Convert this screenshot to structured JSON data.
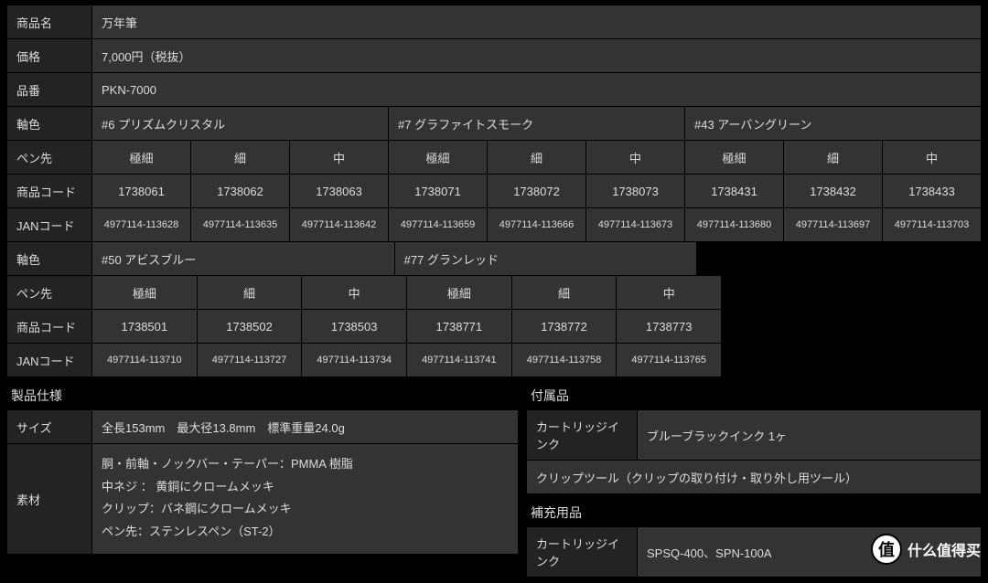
{
  "palette": {
    "bg": "#000000",
    "cell_header": "#232323",
    "cell_value": "#333333",
    "cell_mid": "#2b2b2b",
    "text": "#dddddd",
    "gap": "#000000"
  },
  "labels": {
    "product_name": "商品名",
    "price": "価格",
    "part_no": "品番",
    "body_color": "軸色",
    "nib": "ペン先",
    "product_code": "商品コード",
    "jan_code": "JANコード",
    "spec": "製品仕様",
    "size": "サイズ",
    "material": "素材",
    "accessories": "付属品",
    "cartridge_ink": "カートリッジインク",
    "clip_tool_label": "クリップツール（クリップの取り付け・取り外し用ツール）",
    "refill": "補充用品"
  },
  "product": {
    "name": "万年筆",
    "price": "7,000円（税抜）",
    "part_no": "PKN-7000"
  },
  "nib_types": [
    "極細",
    "細",
    "中"
  ],
  "colors1": [
    {
      "name": "#6 プリズムクリスタル",
      "codes": [
        "1738061",
        "1738062",
        "1738063"
      ],
      "jan": [
        "4977114-113628",
        "4977114-113635",
        "4977114-113642"
      ]
    },
    {
      "name": "#7 グラファイトスモーク",
      "codes": [
        "1738071",
        "1738072",
        "1738073"
      ],
      "jan": [
        "4977114-113659",
        "4977114-113666",
        "4977114-113673"
      ]
    },
    {
      "name": "#43 アーバングリーン",
      "codes": [
        "1738431",
        "1738432",
        "1738433"
      ],
      "jan": [
        "4977114-113680",
        "4977114-113697",
        "4977114-113703"
      ]
    }
  ],
  "colors2": [
    {
      "name": "#50 アビスブルー",
      "codes": [
        "1738501",
        "1738502",
        "1738503"
      ],
      "jan": [
        "4977114-113710",
        "4977114-113727",
        "4977114-113734"
      ]
    },
    {
      "name": "#77 グランレッド",
      "codes": [
        "1738771",
        "1738772",
        "1738773"
      ],
      "jan": [
        "4977114-113741",
        "4977114-113758",
        "4977114-113765"
      ]
    }
  ],
  "spec": {
    "size": "全長153mm　最大径13.8mm　標準重量24.0g",
    "material": [
      "胴・前軸・ノックバー・テーパー：PMMA 樹脂",
      "中ネジ ： 黄銅にクロームメッキ",
      "クリップ：バネ鋼にクロームメッキ",
      "ペン先：ステンレスペン（ST-2）"
    ]
  },
  "accessories": {
    "cartridge": "ブルーブラックインク 1ヶ",
    "clip_tool": "クリップツール（クリップの取り付け・取り外し用ツール）"
  },
  "refill": {
    "cartridge": "SPSQ-400、SPN-100A"
  },
  "watermark": {
    "icon": "值",
    "text": "什么值得买"
  }
}
